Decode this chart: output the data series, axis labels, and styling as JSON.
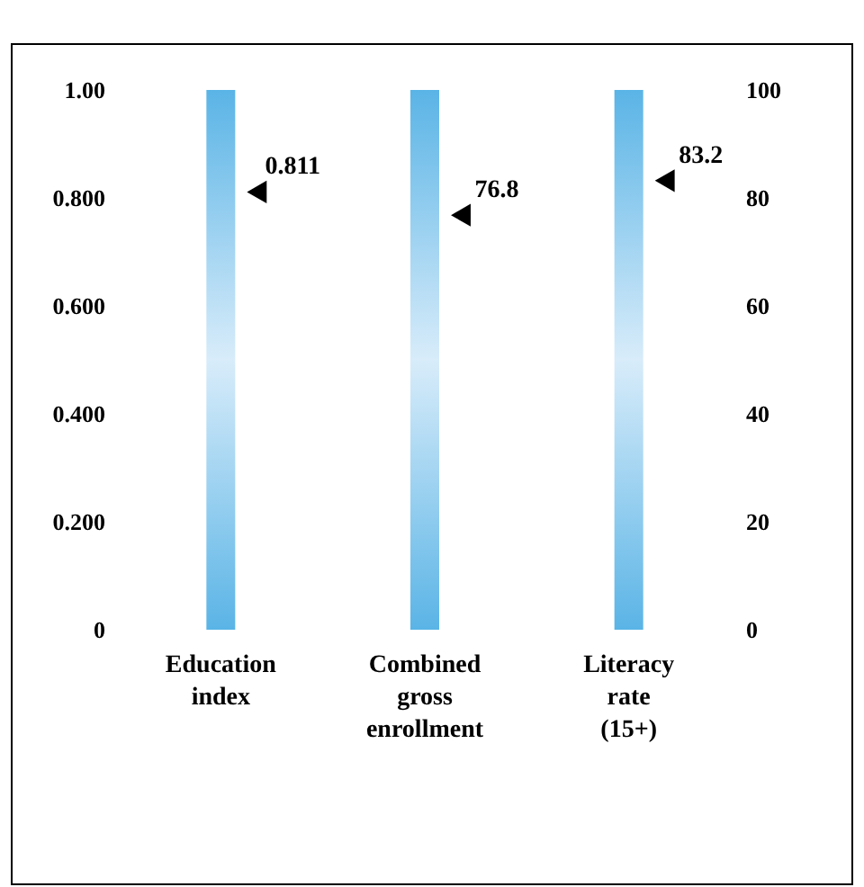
{
  "chart_data": {
    "type": "scatter",
    "categories": [
      "Education index",
      "Combined gross enrollment",
      "Literacy rate (15+)"
    ],
    "series": [
      {
        "type": "bar",
        "color": "#5ab4e6",
        "values": [
          1,
          null,
          null
        ]
      },
      {
        "type": "bar",
        "color": "#5ab4e6",
        "axis": "y2",
        "values": [
          null,
          100,
          100
        ]
      },
      {
        "color": "#000000",
        "values": [
          0.811,
          null,
          null
        ],
        "value_labels": [
          "0.811",
          null,
          null
        ]
      },
      {
        "color": "#000000",
        "axis": "y2",
        "values": [
          null,
          76.8,
          83.2
        ],
        "value_labels": [
          null,
          "76.8",
          "83.2"
        ]
      }
    ],
    "ylim": [
      0,
      1
    ],
    "yticks": [
      0,
      {
        "value": 0.2,
        "label": "0.200"
      },
      {
        "value": 0.4,
        "label": "0.400"
      },
      {
        "value": 0.6,
        "label": "0.600"
      },
      {
        "value": 0.8,
        "label": "0.800"
      },
      {
        "value": 1,
        "label": "1.00"
      }
    ],
    "y2lim": [
      0,
      100
    ],
    "y2ticks": [
      0,
      20,
      40,
      60,
      80,
      100
    ],
    "marker": "triangle"
  }
}
